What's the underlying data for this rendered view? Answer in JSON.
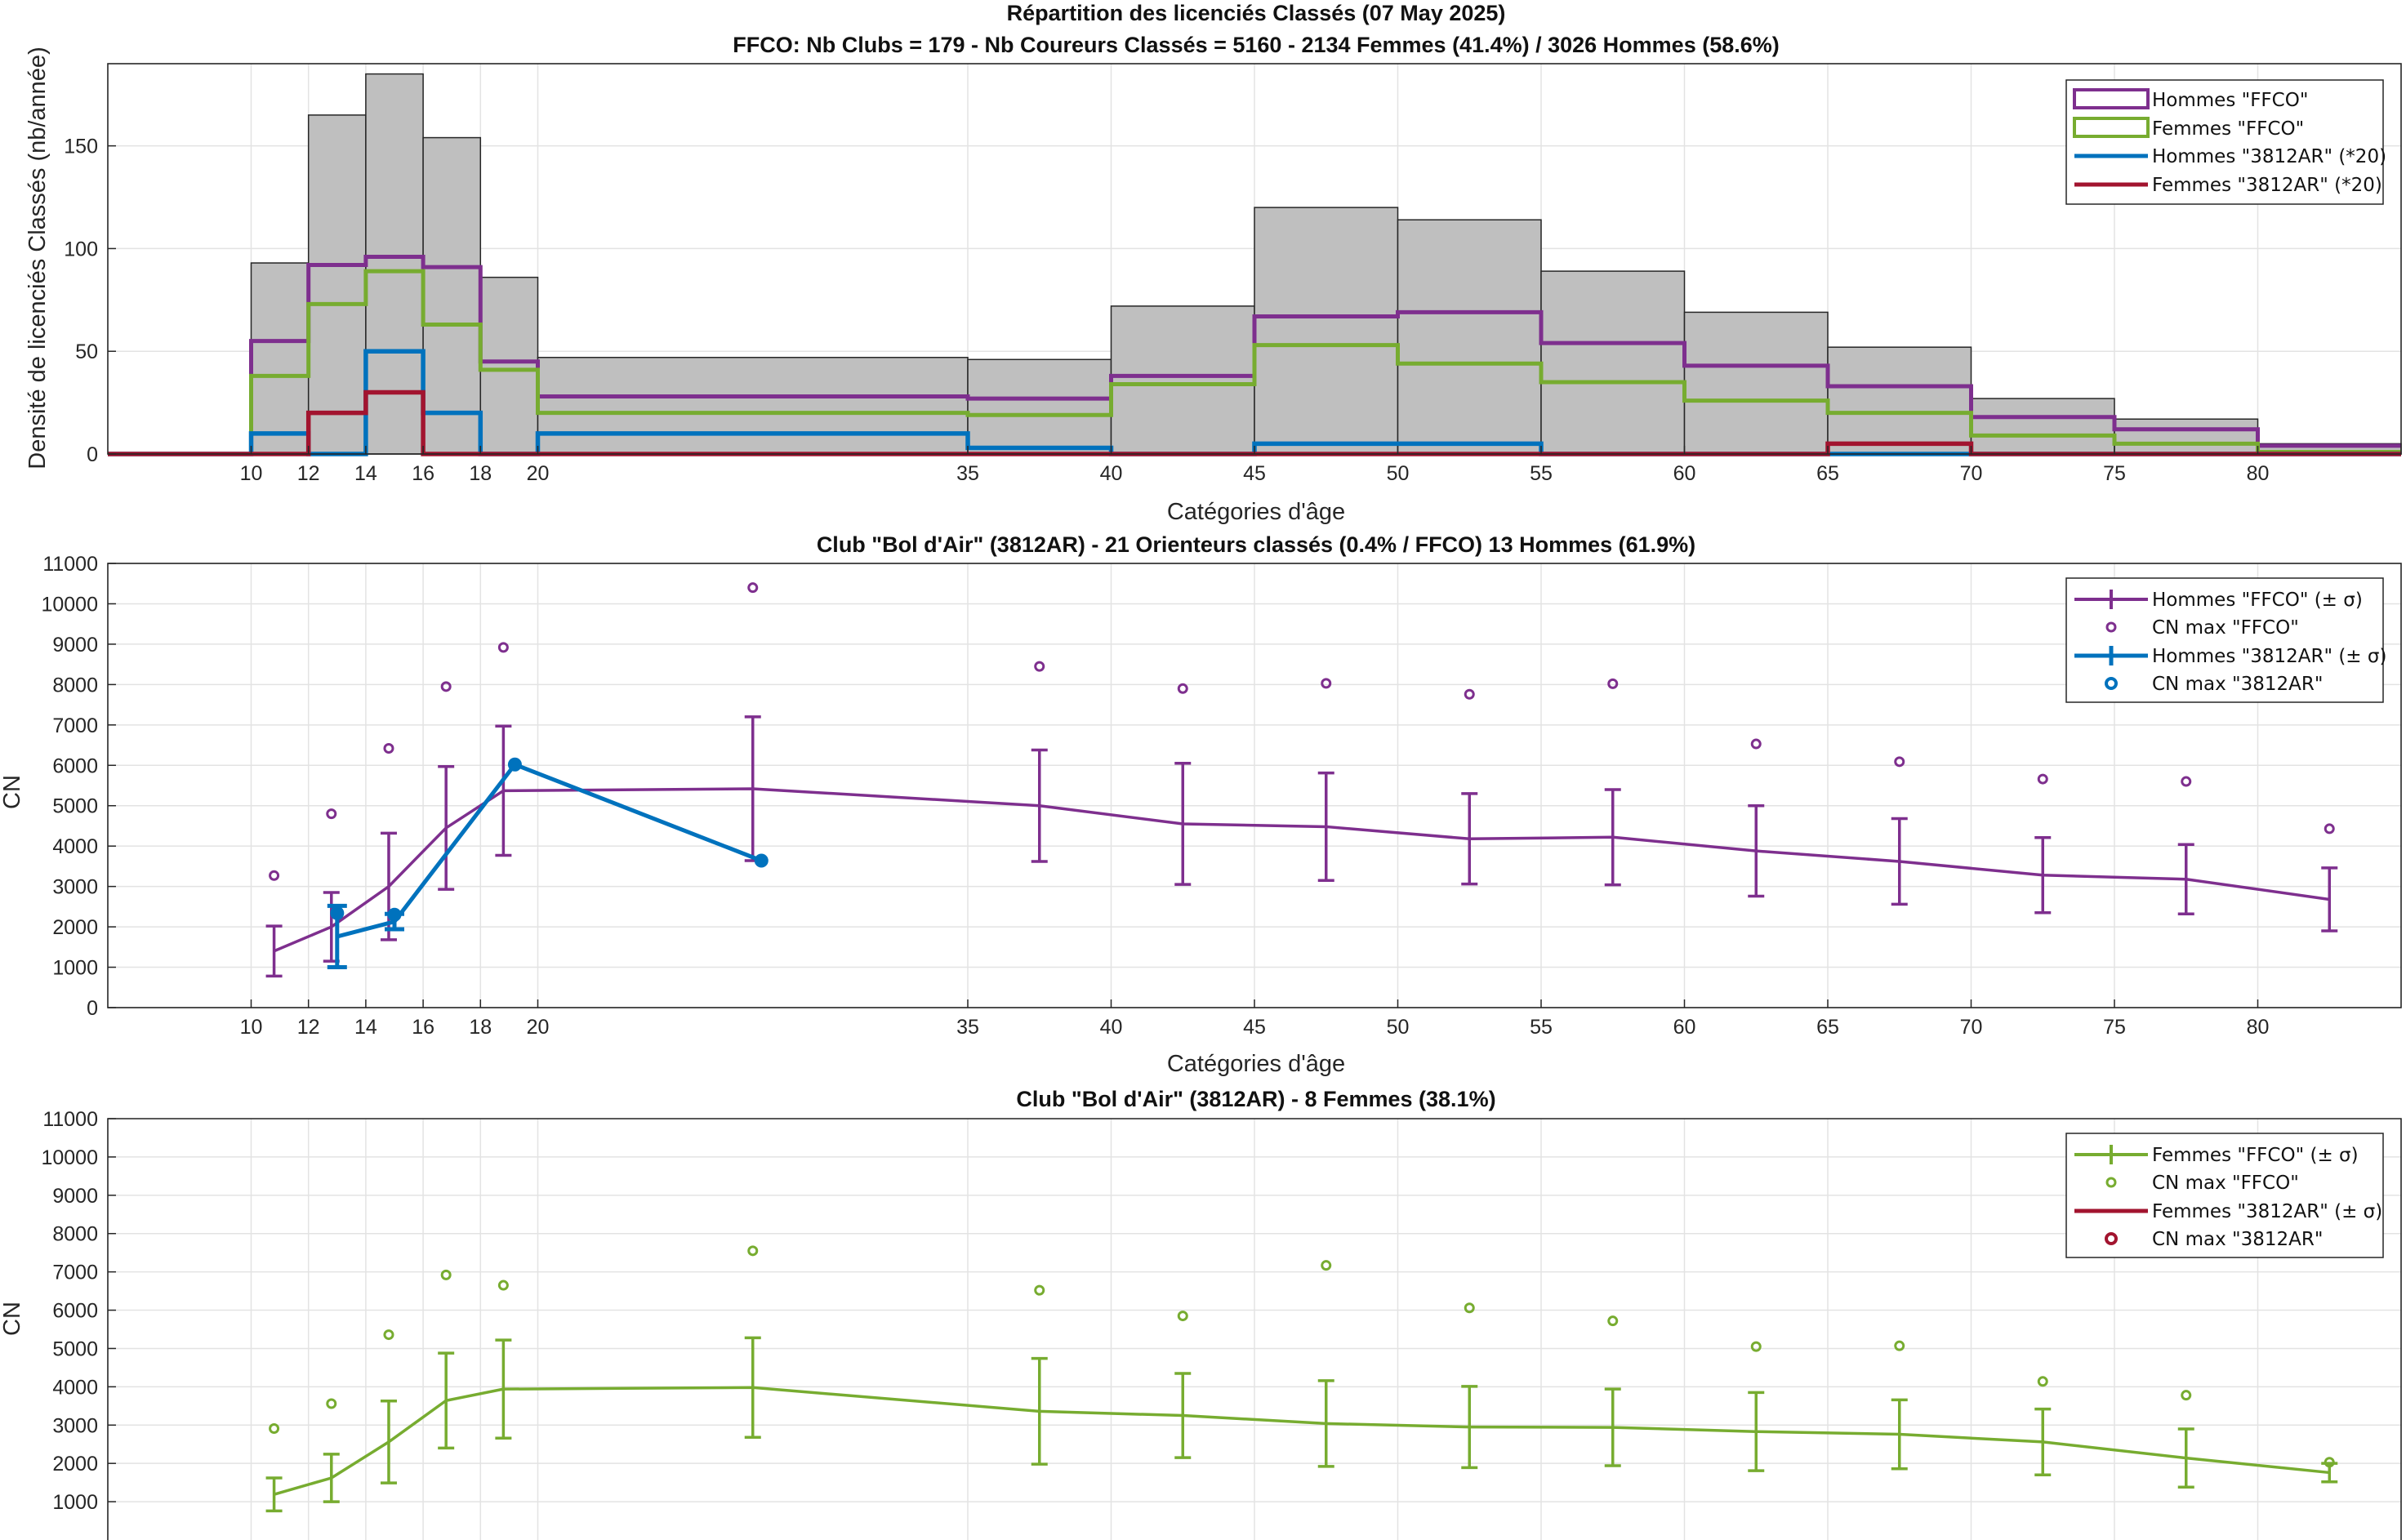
{
  "chart_data": [
    {
      "type": "bar",
      "title": "Répartition des licenciés Classés (07 May 2025)",
      "subtitle": "FFCO: Nb Clubs = 179   -   Nb Coureurs Classés = 5160   -   2134 Femmes (41.4%) / 3026 Hommes (58.6%)",
      "xlabel": "Catégories d'âge",
      "ylabel": "Densité de licenciés Classés (nb/année)",
      "xlim": [
        5,
        85
      ],
      "ylim": [
        0,
        190
      ],
      "xticks": [
        10,
        12,
        14,
        16,
        18,
        20,
        35,
        40,
        45,
        50,
        55,
        60,
        65,
        70,
        75,
        80
      ],
      "yticks": [
        0,
        50,
        100,
        150
      ],
      "bin_edges": [
        5,
        10,
        12,
        14,
        16,
        18,
        20,
        35,
        40,
        45,
        50,
        55,
        60,
        65,
        70,
        75,
        80,
        85
      ],
      "bars": [
        0,
        93,
        165,
        185,
        154,
        86,
        47,
        46,
        72,
        120,
        114,
        89,
        69,
        52,
        27,
        17,
        5
      ],
      "legend_position": "top-right",
      "series": [
        {
          "name": "Hommes \"FFCO\"",
          "color": "#7E2F8E",
          "values": [
            0,
            55,
            92,
            96,
            91,
            45,
            28,
            27,
            38,
            67,
            69,
            54,
            43,
            33,
            18,
            12,
            4
          ]
        },
        {
          "name": "Femmes \"FFCO\"",
          "color": "#77AC30",
          "values": [
            0,
            38,
            73,
            89,
            63,
            41,
            20,
            19,
            34,
            53,
            44,
            35,
            26,
            20,
            9,
            5,
            1
          ]
        },
        {
          "name": "Hommes \"3812AR\" (*20)",
          "color": "#0072BD",
          "values": [
            0,
            10,
            0,
            50,
            20,
            0,
            10,
            3,
            0,
            5,
            5,
            0,
            0,
            0,
            0,
            0,
            0
          ]
        },
        {
          "name": "Femmes \"3812AR\" (*20)",
          "color": "#A2142F",
          "values": [
            0,
            0,
            20,
            30,
            0,
            0,
            0,
            0,
            0,
            0,
            0,
            0,
            0,
            5,
            0,
            0,
            0
          ]
        }
      ]
    },
    {
      "type": "line",
      "title": "Club \"Bol d'Air\" (3812AR)  -  21 Orienteurs classés (0.4% / FFCO)  13 Hommes (61.9%)",
      "xlabel": "Catégories d'âge",
      "ylabel": "CN",
      "xlim": [
        5,
        85
      ],
      "ylim": [
        0,
        11000
      ],
      "xticks": [
        10,
        12,
        14,
        16,
        18,
        20,
        35,
        40,
        45,
        50,
        55,
        60,
        65,
        70,
        75,
        80
      ],
      "yticks": [
        0,
        1000,
        2000,
        3000,
        4000,
        5000,
        6000,
        7000,
        8000,
        9000,
        10000,
        11000
      ],
      "legend_position": "top-right",
      "series": [
        {
          "name": "Hommes \"FFCO\" (± σ)",
          "color": "#7E2F8E",
          "x": [
            10.8,
            12.8,
            14.8,
            16.8,
            18.8,
            27.5,
            37.5,
            42.5,
            47.5,
            52.5,
            57.5,
            62.5,
            67.5,
            72.5,
            77.5,
            82.5
          ],
          "y": [
            1400,
            2000,
            3000,
            4450,
            5370,
            5420,
            5000,
            4550,
            4480,
            4180,
            4220,
            3880,
            3620,
            3280,
            3180,
            2680
          ],
          "err": [
            620,
            850,
            1320,
            1520,
            1600,
            1780,
            1380,
            1500,
            1330,
            1120,
            1180,
            1120,
            1060,
            930,
            860,
            780
          ]
        },
        {
          "name": "CN max \"FFCO\"",
          "color": "#7E2F8E",
          "x": [
            10.8,
            12.8,
            14.8,
            16.8,
            18.8,
            27.5,
            37.5,
            42.5,
            47.5,
            52.5,
            57.5,
            62.5,
            67.5,
            72.5,
            77.5,
            82.5
          ],
          "y": [
            3270,
            4800,
            6420,
            7950,
            8920,
            10400,
            8450,
            7900,
            8030,
            7760,
            8020,
            6530,
            6090,
            5660,
            5600,
            4430
          ]
        },
        {
          "name": "Hommes \"3812AR\" (± σ)",
          "color": "#0072BD",
          "x": [
            13.0,
            15.0,
            19.2,
            27.8
          ],
          "y": [
            1760,
            2130,
            6020,
            3640
          ],
          "err": [
            760,
            190,
            0,
            0
          ]
        },
        {
          "name": "CN max \"3812AR\"",
          "color": "#0072BD",
          "x": [
            13.0,
            15.0,
            19.2,
            27.8
          ],
          "y": [
            2340,
            2300,
            6020,
            3640
          ]
        }
      ]
    },
    {
      "type": "line",
      "title": "Club \"Bol d'Air\" (3812AR)  -  8 Femmes (38.1%)",
      "ylabel": "CN",
      "xlim": [
        5,
        85
      ],
      "ylim": [
        0,
        11000
      ],
      "yticks": [
        1000,
        2000,
        3000,
        4000,
        5000,
        6000,
        7000,
        8000,
        9000,
        10000,
        11000
      ],
      "legend_position": "top-right",
      "series": [
        {
          "name": "Femmes \"FFCO\" (± σ)",
          "color": "#77AC30",
          "x": [
            10.8,
            12.8,
            14.8,
            16.8,
            18.8,
            27.5,
            37.5,
            42.5,
            47.5,
            52.5,
            57.5,
            62.5,
            67.5,
            72.5,
            77.5,
            82.5
          ],
          "y": [
            1190,
            1620,
            2560,
            3640,
            3940,
            3980,
            3360,
            3250,
            3040,
            2950,
            2940,
            2830,
            2760,
            2560,
            2140,
            1760
          ],
          "err": [
            430,
            620,
            1070,
            1240,
            1280,
            1300,
            1380,
            1100,
            1120,
            1060,
            1000,
            1020,
            900,
            860,
            760,
            240
          ]
        },
        {
          "name": "CN max \"FFCO\"",
          "color": "#77AC30",
          "x": [
            10.8,
            12.8,
            14.8,
            16.8,
            18.8,
            27.5,
            37.5,
            42.5,
            47.5,
            52.5,
            57.5,
            62.5,
            67.5,
            72.5,
            77.5,
            82.5
          ],
          "y": [
            2910,
            3560,
            5360,
            6920,
            6650,
            7550,
            6520,
            5850,
            7170,
            6060,
            5720,
            5050,
            5070,
            4140,
            3780,
            2030
          ]
        },
        {
          "name": "Femmes \"3812AR\" (± σ)",
          "color": "#A2142F",
          "x": [],
          "y": [],
          "err": []
        },
        {
          "name": "CN max \"3812AR\"",
          "color": "#A2142F",
          "x": [],
          "y": []
        }
      ]
    }
  ]
}
